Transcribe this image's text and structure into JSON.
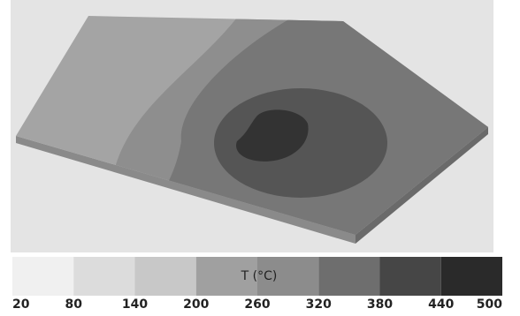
{
  "colorbar": {
    "title": "T (°C)",
    "ticks": [
      20,
      80,
      140,
      200,
      260,
      320,
      380,
      440,
      500
    ],
    "colors": [
      "#f0f0f0",
      "#dcdcdc",
      "#c8c8c8",
      "#a0a0a0",
      "#8c8c8c",
      "#6e6e6e",
      "#464646",
      "#2a2a2a"
    ]
  }
}
